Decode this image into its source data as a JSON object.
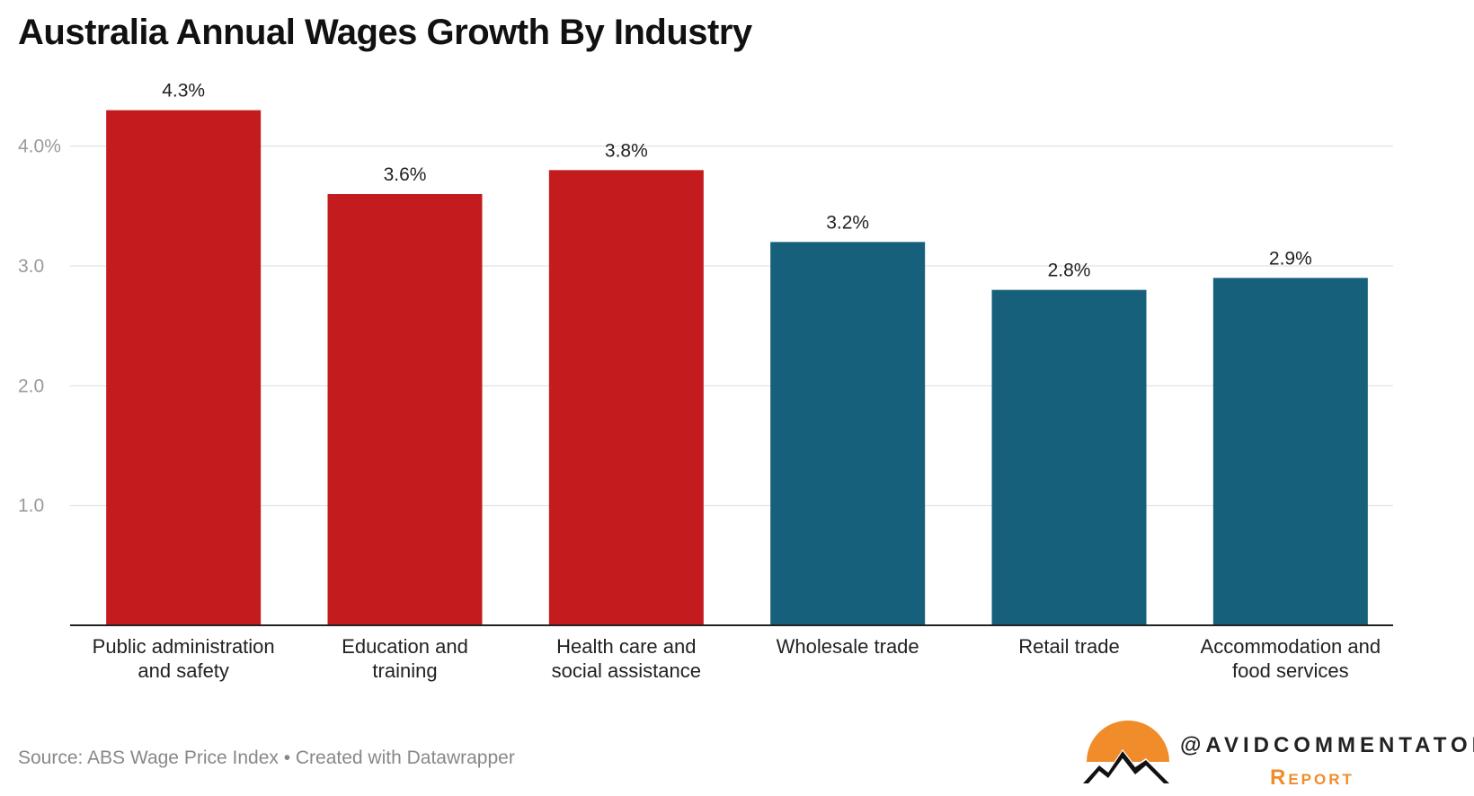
{
  "chart_data": {
    "type": "bar",
    "title": "Australia Annual Wages Growth By Industry",
    "categories": [
      [
        "Public administration",
        "and safety"
      ],
      [
        "Education and",
        "training"
      ],
      [
        "Health care and",
        "social assistance"
      ],
      [
        "Wholesale trade"
      ],
      [
        "Retail trade"
      ],
      [
        "Accommodation and",
        "food services"
      ]
    ],
    "values": [
      4.3,
      3.6,
      3.8,
      3.2,
      2.8,
      2.9
    ],
    "value_labels": [
      "4.3%",
      "3.6%",
      "3.8%",
      "3.2%",
      "2.8%",
      "2.9%"
    ],
    "bar_colors": [
      "#c41c1e",
      "#c41c1e",
      "#c41c1e",
      "#17607c",
      "#17607c",
      "#17607c"
    ],
    "yticks": [
      1.0,
      2.0,
      3.0,
      4.0
    ],
    "ytick_labels": [
      "1.0",
      "2.0",
      "3.0",
      "4.0%"
    ],
    "ylim": [
      0,
      4.5
    ],
    "xlabel": "",
    "ylabel": "",
    "grid": true,
    "legend": "none"
  },
  "source": "Source: ABS Wage Price Index • Created with Datawrapper",
  "branding": {
    "handle": "@AVIDCOMMENTATOR",
    "subtitle": "Report",
    "accent": "#f08c2a"
  }
}
